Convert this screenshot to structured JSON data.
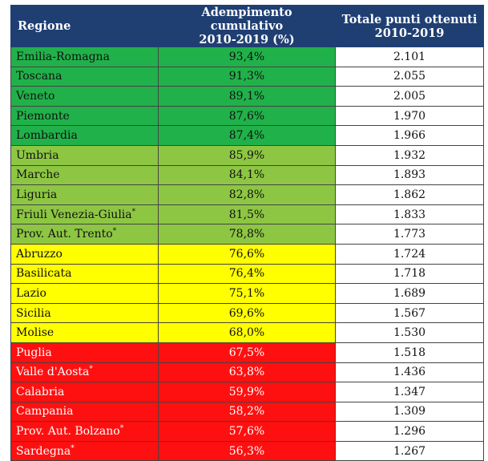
{
  "header": {
    "col_region": "Regione",
    "col_pct": "Adempimento cumulativo\n2010-2019 (%)",
    "col_points": "Totale punti ottenuti\n2010-2019"
  },
  "colors": {
    "header_bg": "#1f3f73",
    "dark_green": "#21b14a",
    "light_green": "#8dc643",
    "yellow": "#ffff00",
    "red": "#ff1010"
  },
  "rows": [
    {
      "region": "Emilia-Romagna",
      "star": "",
      "pct": "93,4%",
      "points": "2.101",
      "band": "g1"
    },
    {
      "region": "Toscana",
      "star": "",
      "pct": "91,3%",
      "points": "2.055",
      "band": "g1"
    },
    {
      "region": "Veneto",
      "star": "",
      "pct": "89,1%",
      "points": "2.005",
      "band": "g1"
    },
    {
      "region": "Piemonte",
      "star": "",
      "pct": "87,6%",
      "points": "1.970",
      "band": "g1"
    },
    {
      "region": "Lombardia",
      "star": "",
      "pct": "87,4%",
      "points": "1.966",
      "band": "g1"
    },
    {
      "region": "Umbria",
      "star": "",
      "pct": "85,9%",
      "points": "1.932",
      "band": "g2"
    },
    {
      "region": "Marche",
      "star": "",
      "pct": "84,1%",
      "points": "1.893",
      "band": "g2"
    },
    {
      "region": "Liguria",
      "star": "",
      "pct": "82,8%",
      "points": "1.862",
      "band": "g2"
    },
    {
      "region": "Friuli Venezia-Giulia",
      "star": "*",
      "pct": "81,5%",
      "points": "1.833",
      "band": "g2"
    },
    {
      "region": "Prov. Aut. Trento",
      "star": "*",
      "pct": "78,8%",
      "points": "1.773",
      "band": "g2"
    },
    {
      "region": "Abruzzo",
      "star": "",
      "pct": "76,6%",
      "points": "1.724",
      "band": "g3"
    },
    {
      "region": "Basilicata",
      "star": "",
      "pct": "76,4%",
      "points": "1.718",
      "band": "g3"
    },
    {
      "region": "Lazio",
      "star": "",
      "pct": "75,1%",
      "points": "1.689",
      "band": "g3"
    },
    {
      "region": "Sicilia",
      "star": "",
      "pct": "69,6%",
      "points": "1.567",
      "band": "g3"
    },
    {
      "region": "Molise",
      "star": "",
      "pct": "68,0%",
      "points": "1.530",
      "band": "g3"
    },
    {
      "region": "Puglia",
      "star": "",
      "pct": "67,5%",
      "points": "1.518",
      "band": "g4"
    },
    {
      "region": "Valle d'Aosta",
      "star": "*",
      "pct": "63,8%",
      "points": "1.436",
      "band": "g4"
    },
    {
      "region": "Calabria",
      "star": "",
      "pct": "59,9%",
      "points": "1.347",
      "band": "g4"
    },
    {
      "region": "Campania",
      "star": "",
      "pct": "58,2%",
      "points": "1.309",
      "band": "g4"
    },
    {
      "region": "Prov. Aut. Bolzano",
      "star": "*",
      "pct": "57,6%",
      "points": "1.296",
      "band": "g4"
    },
    {
      "region": "Sardegna",
      "star": "*",
      "pct": "56,3%",
      "points": "1.267",
      "band": "g4"
    }
  ]
}
